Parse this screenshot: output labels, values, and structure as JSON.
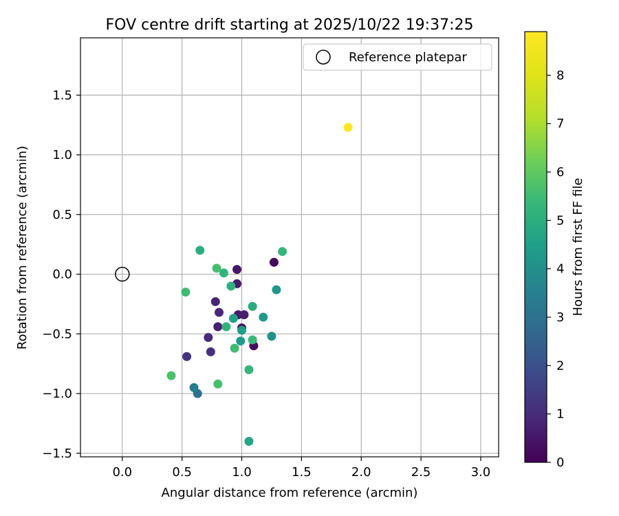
{
  "chart_data": {
    "type": "scatter",
    "title": "FOV centre drift starting at 2025/10/22 19:37:25",
    "xlabel": "Angular distance from reference (arcmin)",
    "ylabel": "Rotation from reference (arcmin)",
    "xlim": [
      -0.35,
      3.15
    ],
    "ylim": [
      -1.53,
      1.98
    ],
    "x_ticks": [
      0.0,
      0.5,
      1.0,
      1.5,
      2.0,
      2.5,
      3.0
    ],
    "x_tick_labels": [
      "0.0",
      "0.5",
      "1.0",
      "1.5",
      "2.0",
      "2.5",
      "3.0"
    ],
    "y_ticks": [
      -1.5,
      -1.0,
      -0.5,
      0.0,
      0.5,
      1.0,
      1.5
    ],
    "y_tick_labels": [
      "−1.5",
      "−1.0",
      "−0.5",
      "0.0",
      "0.5",
      "1.0",
      "1.5"
    ],
    "grid": true,
    "legend": {
      "position": "top-right",
      "entries": [
        "Reference platepar"
      ]
    },
    "reference_point": {
      "x": 0.0,
      "y": 0.0,
      "label": "Reference platepar"
    },
    "colorbar": {
      "label": "Hours from first FF file",
      "colormap": "viridis",
      "range": [
        0,
        8.9
      ],
      "ticks": [
        0,
        1,
        2,
        3,
        4,
        5,
        6,
        7,
        8
      ],
      "tick_labels": [
        "0",
        "1",
        "2",
        "3",
        "4",
        "5",
        "6",
        "7",
        "8"
      ]
    },
    "points": [
      {
        "x": 1.27,
        "y": 0.1,
        "hours": 0.2
      },
      {
        "x": 1.1,
        "y": -0.6,
        "hours": 0.3
      },
      {
        "x": 1.0,
        "y": -0.45,
        "hours": 0.4
      },
      {
        "x": 0.96,
        "y": 0.04,
        "hours": 0.5
      },
      {
        "x": 0.96,
        "y": -0.08,
        "hours": 0.6
      },
      {
        "x": 0.97,
        "y": -0.34,
        "hours": 0.6
      },
      {
        "x": 1.02,
        "y": -0.34,
        "hours": 0.7
      },
      {
        "x": 0.8,
        "y": -0.44,
        "hours": 0.7
      },
      {
        "x": 0.78,
        "y": -0.23,
        "hours": 0.8
      },
      {
        "x": 0.81,
        "y": -0.32,
        "hours": 0.9
      },
      {
        "x": 0.72,
        "y": -0.53,
        "hours": 1.0
      },
      {
        "x": 0.74,
        "y": -0.65,
        "hours": 1.1
      },
      {
        "x": 0.54,
        "y": -0.69,
        "hours": 1.2
      },
      {
        "x": 0.63,
        "y": -1.0,
        "hours": 2.9
      },
      {
        "x": 0.6,
        "y": -0.95,
        "hours": 3.4
      },
      {
        "x": 1.25,
        "y": -0.52,
        "hours": 4.0
      },
      {
        "x": 1.29,
        "y": -0.13,
        "hours": 4.2
      },
      {
        "x": 1.18,
        "y": -0.36,
        "hours": 4.3
      },
      {
        "x": 0.99,
        "y": -0.56,
        "hours": 4.4
      },
      {
        "x": 1.0,
        "y": -0.47,
        "hours": 4.5
      },
      {
        "x": 0.93,
        "y": -0.37,
        "hours": 4.6
      },
      {
        "x": 1.06,
        "y": -1.4,
        "hours": 4.7
      },
      {
        "x": 1.09,
        "y": -0.27,
        "hours": 5.0
      },
      {
        "x": 0.91,
        "y": -0.1,
        "hours": 5.1
      },
      {
        "x": 0.85,
        "y": 0.01,
        "hours": 5.2
      },
      {
        "x": 0.87,
        "y": -0.44,
        "hours": 5.2
      },
      {
        "x": 1.06,
        "y": -0.8,
        "hours": 5.3
      },
      {
        "x": 1.09,
        "y": -0.55,
        "hours": 5.4
      },
      {
        "x": 0.94,
        "y": -0.62,
        "hours": 5.5
      },
      {
        "x": 0.79,
        "y": 0.05,
        "hours": 5.6
      },
      {
        "x": 0.65,
        "y": 0.2,
        "hours": 5.0
      },
      {
        "x": 1.34,
        "y": 0.19,
        "hours": 5.3
      },
      {
        "x": 0.53,
        "y": -0.15,
        "hours": 5.5
      },
      {
        "x": 0.8,
        "y": -0.92,
        "hours": 5.6
      },
      {
        "x": 0.41,
        "y": -0.85,
        "hours": 5.7
      },
      {
        "x": 1.89,
        "y": 1.23,
        "hours": 8.9
      }
    ]
  }
}
